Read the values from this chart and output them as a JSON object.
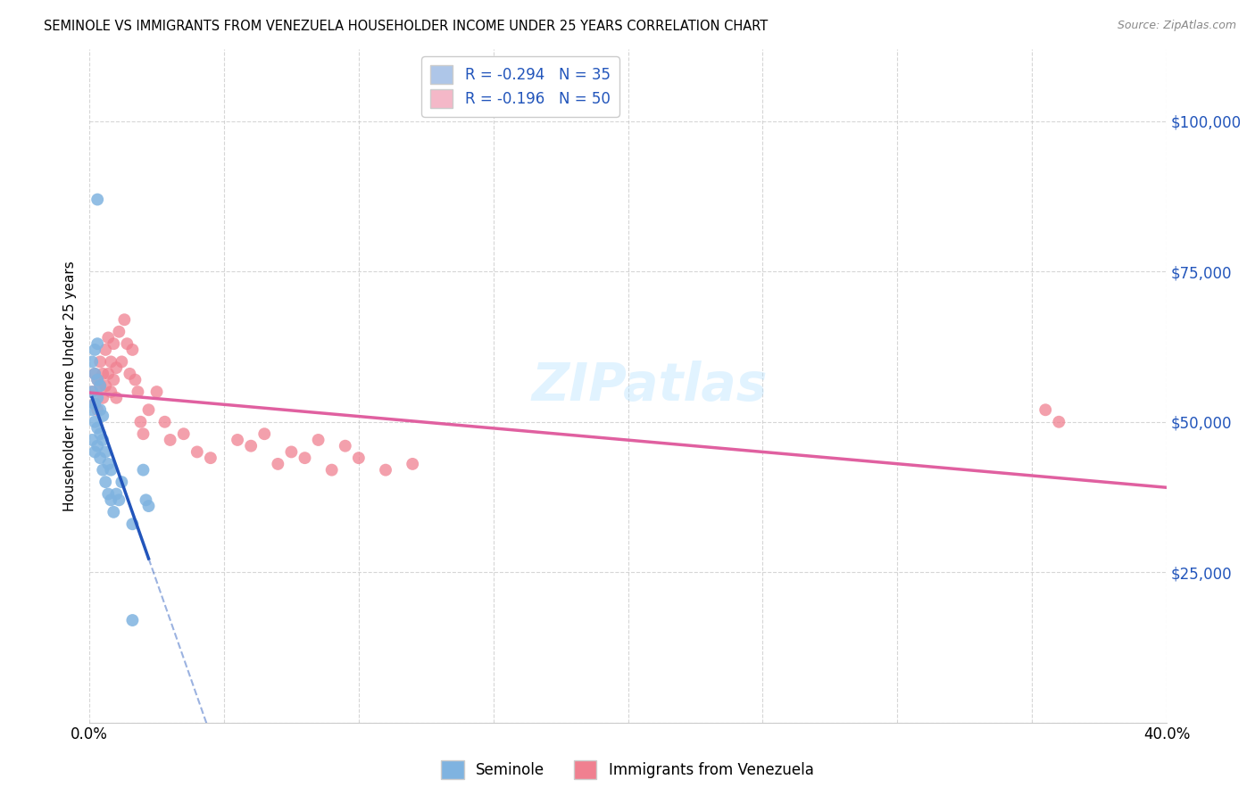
{
  "title": "SEMINOLE VS IMMIGRANTS FROM VENEZUELA HOUSEHOLDER INCOME UNDER 25 YEARS CORRELATION CHART",
  "source": "Source: ZipAtlas.com",
  "ylabel": "Householder Income Under 25 years",
  "xlim": [
    0.0,
    0.4
  ],
  "ylim": [
    0,
    112000
  ],
  "yticks": [
    0,
    25000,
    50000,
    75000,
    100000
  ],
  "ytick_labels": [
    "",
    "$25,000",
    "$50,000",
    "$75,000",
    "$100,000"
  ],
  "xticks": [
    0.0,
    0.05,
    0.1,
    0.15,
    0.2,
    0.25,
    0.3,
    0.35,
    0.4
  ],
  "xtick_labels": [
    "0.0%",
    "",
    "",
    "",
    "",
    "",
    "",
    "",
    "40.0%"
  ],
  "legend_labels": [
    "R = -0.294   N = 35",
    "R = -0.196   N = 50"
  ],
  "legend_colors": [
    "#aec6e8",
    "#f4b8c8"
  ],
  "bottom_legend": [
    "Seminole",
    "Immigrants from Venezuela"
  ],
  "seminole_color": "#7fb3e0",
  "venezuela_color": "#f08090",
  "trend_seminole_color": "#2255bb",
  "trend_venezuela_color": "#e060a0",
  "watermark": "ZIPatlas",
  "seminole_x": [
    0.001,
    0.001,
    0.001,
    0.001,
    0.002,
    0.002,
    0.002,
    0.002,
    0.002,
    0.003,
    0.003,
    0.003,
    0.003,
    0.003,
    0.004,
    0.004,
    0.004,
    0.004,
    0.005,
    0.005,
    0.005,
    0.006,
    0.006,
    0.007,
    0.007,
    0.008,
    0.008,
    0.009,
    0.01,
    0.011,
    0.012,
    0.016,
    0.02,
    0.021,
    0.022
  ],
  "seminole_y": [
    47000,
    52000,
    55000,
    60000,
    45000,
    50000,
    53000,
    58000,
    62000,
    46000,
    49000,
    54000,
    57000,
    63000,
    44000,
    48000,
    52000,
    56000,
    42000,
    47000,
    51000,
    40000,
    45000,
    38000,
    43000,
    37000,
    42000,
    35000,
    38000,
    37000,
    40000,
    33000,
    42000,
    37000,
    36000
  ],
  "venezuela_x": [
    0.001,
    0.002,
    0.002,
    0.003,
    0.003,
    0.004,
    0.004,
    0.005,
    0.005,
    0.006,
    0.006,
    0.007,
    0.007,
    0.008,
    0.008,
    0.009,
    0.009,
    0.01,
    0.01,
    0.011,
    0.012,
    0.013,
    0.014,
    0.015,
    0.016,
    0.017,
    0.018,
    0.019,
    0.02,
    0.022,
    0.025,
    0.028,
    0.03,
    0.035,
    0.04,
    0.045,
    0.055,
    0.06,
    0.065,
    0.07,
    0.075,
    0.08,
    0.085,
    0.09,
    0.095,
    0.1,
    0.11,
    0.12,
    0.355,
    0.36
  ],
  "venezuela_y": [
    55000,
    53000,
    58000,
    52000,
    57000,
    56000,
    60000,
    54000,
    58000,
    56000,
    62000,
    58000,
    64000,
    55000,
    60000,
    57000,
    63000,
    54000,
    59000,
    65000,
    60000,
    67000,
    63000,
    58000,
    62000,
    57000,
    55000,
    50000,
    48000,
    52000,
    55000,
    50000,
    47000,
    48000,
    45000,
    44000,
    47000,
    46000,
    48000,
    43000,
    45000,
    44000,
    47000,
    42000,
    46000,
    44000,
    42000,
    43000,
    52000,
    50000
  ],
  "seminole_one_blue": [
    0.003,
    87000
  ],
  "seminole_low": [
    0.016,
    17000
  ]
}
